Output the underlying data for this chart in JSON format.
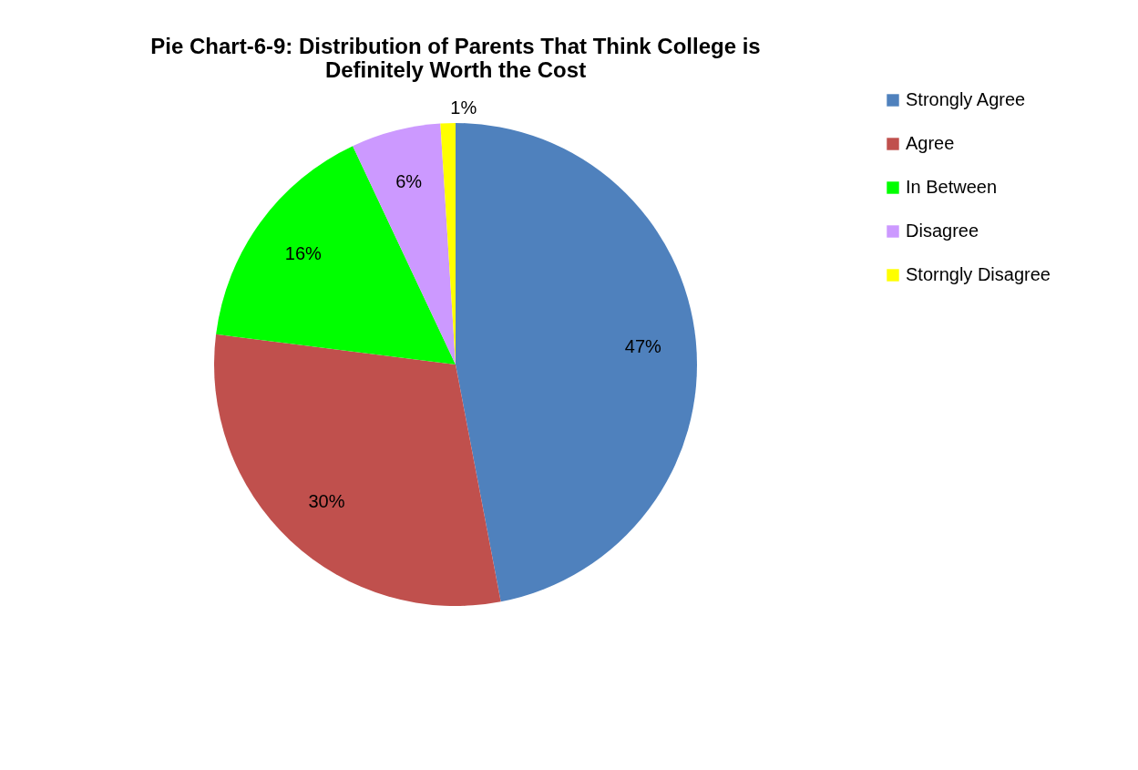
{
  "chart_data": {
    "type": "pie",
    "title": "Pie Chart-6-9: Distribution of Parents That Think College is Definitely Worth the Cost",
    "categories": [
      "Strongly Agree",
      "Agree",
      "In Between",
      "Disagree",
      "Storngly Disagree"
    ],
    "values": [
      47,
      30,
      16,
      6,
      1
    ],
    "colors": [
      "#4f81bd",
      "#c0504d",
      "#00ff00",
      "#cc99ff",
      "#ffff00"
    ],
    "value_labels": [
      "47%",
      "30%",
      "16%",
      "6%",
      "1%"
    ],
    "legend": "right"
  }
}
